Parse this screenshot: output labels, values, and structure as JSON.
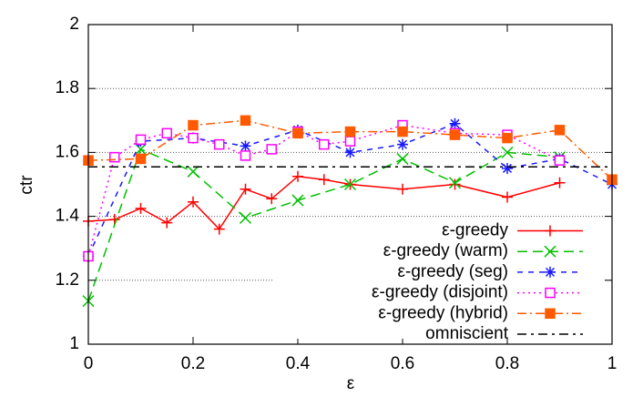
{
  "chart_data": {
    "type": "line",
    "x_label": "ε",
    "y_label": "ctr",
    "xlim": [
      0,
      1
    ],
    "ylim": [
      1,
      2
    ],
    "xticks": [
      0,
      0.2,
      0.4,
      0.6,
      0.8,
      1
    ],
    "yticks": [
      1,
      1.2,
      1.4,
      1.6,
      1.8,
      2
    ],
    "grid": true,
    "legend": "lower right",
    "series": [
      {
        "name": "ε-greedy",
        "color": "#ff0000",
        "marker": "plus",
        "dash": "none",
        "x": [
          0,
          0.05,
          0.1,
          0.15,
          0.2,
          0.25,
          0.3,
          0.35,
          0.4,
          0.45,
          0.5,
          0.6,
          0.7,
          0.8,
          0.9
        ],
        "values": [
          1.385,
          1.39,
          1.425,
          1.38,
          1.445,
          1.36,
          1.485,
          1.455,
          1.525,
          1.515,
          1.5,
          1.485,
          1.5,
          1.46,
          1.505
        ]
      },
      {
        "name": "ε-greedy (warm)",
        "color": "#00c000",
        "marker": "cross",
        "dash": "11,6",
        "x": [
          0,
          0.1,
          0.2,
          0.3,
          0.4,
          0.5,
          0.6,
          0.7,
          0.8,
          0.9
        ],
        "values": [
          1.135,
          1.61,
          1.54,
          1.395,
          1.45,
          1.5,
          1.58,
          1.505,
          1.6,
          1.585
        ]
      },
      {
        "name": "ε-greedy (seg)",
        "color": "#1a1aff",
        "marker": "star",
        "dash": "6,6",
        "x": [
          0,
          0.1,
          0.2,
          0.3,
          0.4,
          0.5,
          0.6,
          0.7,
          0.8,
          0.9,
          1
        ],
        "values": [
          1.275,
          1.635,
          1.645,
          1.62,
          1.67,
          1.6,
          1.625,
          1.69,
          1.55,
          1.58,
          1.5
        ]
      },
      {
        "name": "ε-greedy (disjoint)",
        "color": "#ff00ff",
        "marker": "square",
        "dash": "2,4",
        "x": [
          0,
          0.05,
          0.1,
          0.15,
          0.2,
          0.25,
          0.3,
          0.35,
          0.4,
          0.45,
          0.5,
          0.6,
          0.7,
          0.8,
          0.9
        ],
        "values": [
          1.275,
          1.585,
          1.64,
          1.66,
          1.645,
          1.625,
          1.59,
          1.61,
          1.665,
          1.625,
          1.635,
          1.685,
          1.66,
          1.655,
          1.575
        ]
      },
      {
        "name": "ε-greedy (hybrid)",
        "color": "#ff5a00",
        "marker": "filled-square",
        "dash": "10,4,2,4",
        "x": [
          0,
          0.1,
          0.2,
          0.3,
          0.4,
          0.5,
          0.6,
          0.7,
          0.8,
          0.9,
          1
        ],
        "values": [
          1.575,
          1.58,
          1.685,
          1.7,
          1.66,
          1.665,
          1.665,
          1.655,
          1.645,
          1.67,
          1.515
        ]
      },
      {
        "name": "omniscient",
        "color": "#000000",
        "marker": "none",
        "dash": "10,5,3,5",
        "value": 1.555
      }
    ]
  }
}
